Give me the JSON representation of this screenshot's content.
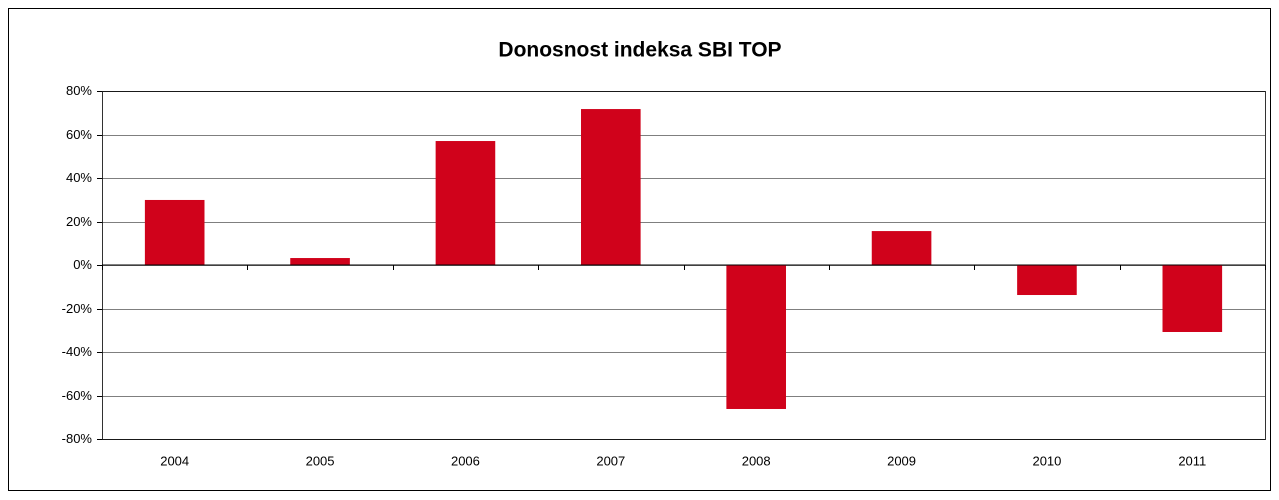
{
  "chart_data": {
    "type": "bar",
    "title": "Donosnost indeksa SBI TOP",
    "categories": [
      "2004",
      "2005",
      "2006",
      "2007",
      "2008",
      "2009",
      "2010",
      "2011"
    ],
    "values": [
      29.9,
      3.2,
      57,
      71.7,
      -66.2,
      15.6,
      -13.8,
      -30.8
    ],
    "color": "#d0021b",
    "ylim": [
      -80,
      80
    ],
    "yticks": [
      {
        "value": -80,
        "label": "-80%"
      },
      {
        "value": -60,
        "label": "-60%"
      },
      {
        "value": -40,
        "label": "-40%"
      },
      {
        "value": -20,
        "label": "-20%"
      },
      {
        "value": 0,
        "label": "0%"
      },
      {
        "value": 20,
        "label": "20%"
      },
      {
        "value": 40,
        "label": "40%"
      },
      {
        "value": 60,
        "label": "60%"
      },
      {
        "value": 80,
        "label": "80%"
      }
    ],
    "grid": true
  }
}
